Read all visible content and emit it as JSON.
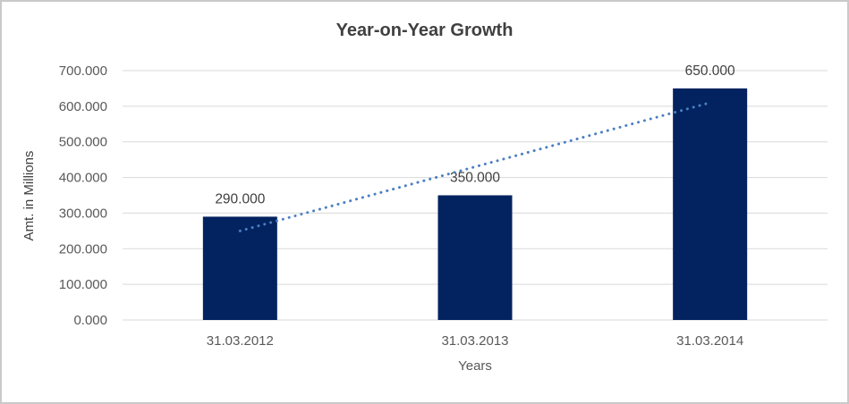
{
  "window": {
    "background": "#ffffff",
    "border_color": "#c9c9c9"
  },
  "chart_data": {
    "type": "bar",
    "title": "Year-on-Year Growth",
    "categories": [
      "31.03.2012",
      "31.03.2013",
      "31.03.2014"
    ],
    "values": [
      290,
      350,
      650
    ],
    "data_labels": [
      "290.000",
      "350.000",
      "650.000"
    ],
    "xlabel": "Years",
    "ylabel": "Amt. in Millions",
    "ylim": [
      0,
      700
    ],
    "ytick_step": 100,
    "ytick_labels": [
      "0.000",
      "100.000",
      "200.000",
      "300.000",
      "400.000",
      "500.000",
      "600.000",
      "700.000"
    ],
    "grid": true,
    "legend": "none",
    "trendline": {
      "type": "linear",
      "style": "dotted",
      "points": [
        {
          "category_index": 0,
          "value": 250
        },
        {
          "category_index": 2,
          "value": 610
        }
      ]
    },
    "colors": {
      "bar": "#02235f",
      "trendline": "#4a7fc2",
      "gridline": "#d9d9d9",
      "tick_text": "#595959",
      "title_text": "#404040",
      "label_text": "#404040"
    }
  }
}
